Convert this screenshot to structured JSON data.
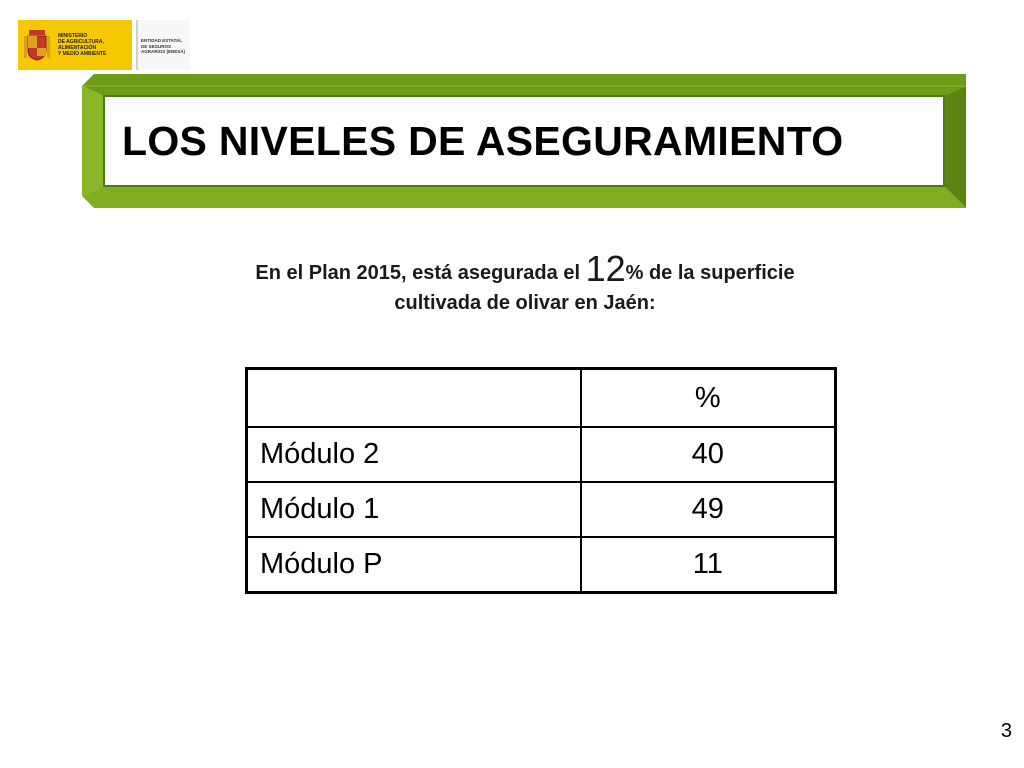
{
  "logo": {
    "ministry_lines": [
      "MINISTERIO",
      "DE AGRICULTURA, ALIMENTACIÓN",
      "Y MEDIO AMBIENTE"
    ],
    "entity_lines": [
      "ENTIDAD ESTATAL",
      "DE SEGUROS",
      "AGRARIOS (ENESA)"
    ],
    "colors": {
      "ministry_bg": "#f6c800",
      "entity_bg": "#f7f7f7"
    }
  },
  "title": "LOS NIVELES DE ASEGURAMIENTO",
  "subtitle": {
    "before": "En el Plan 2015, está asegurada el ",
    "number": "12",
    "after": "% de la superficie",
    "line2": "cultivada de olivar en Jaén:"
  },
  "table": {
    "header": [
      "",
      "%"
    ],
    "rows": [
      {
        "label": "Módulo 2",
        "value": "40"
      },
      {
        "label": "Módulo 1",
        "value": "49"
      },
      {
        "label": "Módulo P",
        "value": "11"
      }
    ]
  },
  "page_number": "3",
  "colors": {
    "banner_green": "#7aa81c",
    "banner_dark": "#5a8210",
    "banner_light": "#a8cf52"
  }
}
